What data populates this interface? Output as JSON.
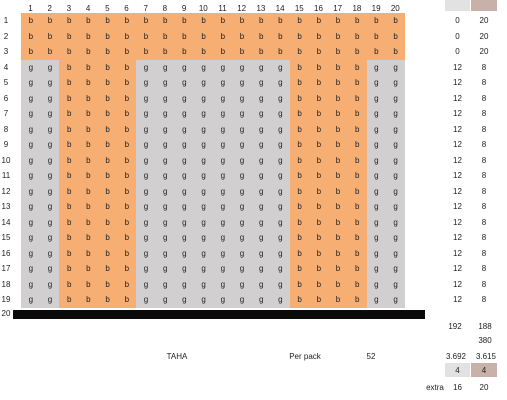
{
  "columns": [
    "1",
    "2",
    "3",
    "4",
    "5",
    "6",
    "7",
    "8",
    "9",
    "10",
    "11",
    "12",
    "13",
    "14",
    "15",
    "16",
    "17",
    "18",
    "19",
    "20"
  ],
  "rows": [
    {
      "label": "1",
      "cells": "bbbbbbbbbbbbbbbbbbbb",
      "left": "0",
      "right": "20"
    },
    {
      "label": "2",
      "cells": "bbbbbbbbbbbbbbbbbbbb",
      "left": "0",
      "right": "20"
    },
    {
      "label": "3",
      "cells": "bbbbbbbbbbbbbbbbbbbb",
      "left": "0",
      "right": "20"
    },
    {
      "label": "4",
      "cells": "ggbbbbggggggggbbbbgg",
      "left": "12",
      "right": "8"
    },
    {
      "label": "5",
      "cells": "ggbbbbggggggggbbbbgg",
      "left": "12",
      "right": "8"
    },
    {
      "label": "6",
      "cells": "ggbbbbggggggggbbbbgg",
      "left": "12",
      "right": "8"
    },
    {
      "label": "7",
      "cells": "ggbbbbggggggggbbbbgg",
      "left": "12",
      "right": "8"
    },
    {
      "label": "8",
      "cells": "ggbbbbggggggggbbbbgg",
      "left": "12",
      "right": "8"
    },
    {
      "label": "9",
      "cells": "ggbbbbggggggggbbbbgg",
      "left": "12",
      "right": "8"
    },
    {
      "label": "10",
      "cells": "ggbbbbggggggggbbbbgg",
      "left": "12",
      "right": "8"
    },
    {
      "label": "11",
      "cells": "ggbbbbggggggggbbbbgg",
      "left": "12",
      "right": "8"
    },
    {
      "label": "12",
      "cells": "ggbbbbggggggggbbbbgg",
      "left": "12",
      "right": "8"
    },
    {
      "label": "13",
      "cells": "ggbbbbggggggggbbbbgg",
      "left": "12",
      "right": "8"
    },
    {
      "label": "14",
      "cells": "ggbbbbggggggggbbbbgg",
      "left": "12",
      "right": "8"
    },
    {
      "label": "15",
      "cells": "ggbbbbggggggggbbbbgg",
      "left": "12",
      "right": "8"
    },
    {
      "label": "16",
      "cells": "ggbbbbggggggggbbbbgg",
      "left": "12",
      "right": "8"
    },
    {
      "label": "17",
      "cells": "ggbbbbggggggggbbbbgg",
      "left": "12",
      "right": "8"
    },
    {
      "label": "18",
      "cells": "ggbbbbggggggggbbbbgg",
      "left": "12",
      "right": "8"
    },
    {
      "label": "19",
      "cells": "ggbbbbggggggggbbbbgg",
      "left": "12",
      "right": "8"
    }
  ],
  "last_row_label": "20",
  "totals": {
    "left": "192",
    "right": "188",
    "combined": "380"
  },
  "taha_label": "TAHA",
  "per_pack_label": "Per pack",
  "per_pack_value": "52",
  "ratios": {
    "left": "3.692",
    "right": "3.615"
  },
  "packs": {
    "left": "4",
    "right": "4"
  },
  "extra_label": "extra",
  "extra": {
    "left": "16",
    "right": "20"
  },
  "colors": {
    "orange": "#f6ae72",
    "grey": "#d1cfcf",
    "swatch_light": "#e2e2e2",
    "swatch_mauve": "#c8b1a9"
  }
}
